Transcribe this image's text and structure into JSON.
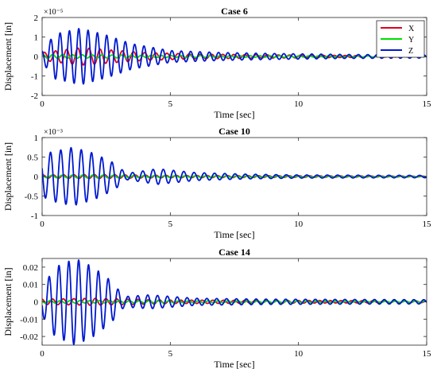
{
  "chart_data": [
    {
      "type": "line",
      "title": "Case 6",
      "xlabel": "Time [sec]",
      "ylabel": "Displacement [in]",
      "xlim": [
        0,
        15
      ],
      "ylim": [
        -2,
        2
      ],
      "xticks": [
        0,
        5,
        10,
        15
      ],
      "yticks": [
        -2,
        -1,
        0,
        1,
        2
      ],
      "ytick_labels": [
        "-2",
        "-1",
        "0",
        "1",
        "2"
      ],
      "exponent_label": "×10⁻⁵",
      "grid": false,
      "legend": "top-right",
      "series": [
        {
          "name": "X",
          "color": "#e0001a",
          "freq": 2.3,
          "envelope": {
            "t": [
              0,
              1.5,
              2.5,
              4,
              6,
              9,
              15
            ],
            "a": [
              0.2,
              0.45,
              0.35,
              0.2,
              0.12,
              0.08,
              0.02
            ]
          }
        },
        {
          "name": "Y",
          "color": "#00dd00",
          "freq": 2.6,
          "envelope": {
            "t": [
              0,
              2,
              5,
              15
            ],
            "a": [
              0.1,
              0.08,
              0.05,
              0.02
            ]
          }
        },
        {
          "name": "Z",
          "color": "#0019d0",
          "freq": 2.75,
          "envelope": {
            "t": [
              0,
              0.5,
              1.5,
              2.5,
              3.5,
              5,
              7,
              9,
              12,
              15
            ],
            "a": [
              0.3,
              1.15,
              1.45,
              1.1,
              0.65,
              0.3,
              0.2,
              0.15,
              0.1,
              0.08
            ]
          }
        }
      ]
    },
    {
      "type": "line",
      "title": "Case 10",
      "xlabel": "Time [sec]",
      "ylabel": "Displacement [in]",
      "xlim": [
        0,
        15
      ],
      "ylim": [
        -1,
        1
      ],
      "xticks": [
        0,
        5,
        10,
        15
      ],
      "yticks": [
        -1,
        -0.5,
        0,
        0.5,
        1
      ],
      "ytick_labels": [
        "-1",
        "-0.5",
        "0",
        "0.5",
        "1"
      ],
      "exponent_label": "×10⁻³",
      "grid": false,
      "series": [
        {
          "name": "X",
          "color": "#e0001a",
          "freq": 2.5,
          "envelope": {
            "t": [
              0,
              2,
              5,
              15
            ],
            "a": [
              0.04,
              0.05,
              0.03,
              0.01
            ]
          }
        },
        {
          "name": "Y",
          "color": "#00dd00",
          "freq": 2.5,
          "envelope": {
            "t": [
              0,
              2,
              5,
              15
            ],
            "a": [
              0.03,
              0.04,
              0.02,
              0.01
            ]
          }
        },
        {
          "name": "Z",
          "color": "#0019d0",
          "freq": 2.5,
          "envelope": {
            "t": [
              0,
              0.3,
              1.2,
              2.0,
              2.8,
              3.3,
              4.5,
              6,
              8,
              10,
              15
            ],
            "a": [
              0.5,
              0.62,
              0.75,
              0.6,
              0.35,
              0.08,
              0.2,
              0.1,
              0.06,
              0.04,
              0.03
            ]
          }
        }
      ]
    },
    {
      "type": "line",
      "title": "Case 14",
      "xlabel": "Time [sec]",
      "ylabel": "Displacement [in]",
      "xlim": [
        0,
        15
      ],
      "ylim": [
        -0.025,
        0.025
      ],
      "xticks": [
        0,
        5,
        10,
        15
      ],
      "yticks": [
        -0.02,
        -0.01,
        0,
        0.01,
        0.02
      ],
      "ytick_labels": [
        "-0.02",
        "-0.01",
        "0",
        "0.01",
        "0.02"
      ],
      "grid": false,
      "series": [
        {
          "name": "X",
          "color": "#e0001a",
          "freq": 2.4,
          "envelope": {
            "t": [
              0,
              2,
              3.5,
              5,
              15
            ],
            "a": [
              0.0015,
              0.002,
              0.0015,
              0.001,
              0.0005
            ]
          }
        },
        {
          "name": "Y",
          "color": "#00dd00",
          "freq": 2.6,
          "envelope": {
            "t": [
              0,
              3,
              15
            ],
            "a": [
              0.0008,
              0.0006,
              0.0003
            ]
          }
        },
        {
          "name": "Z",
          "color": "#0019d0",
          "freq": 2.6,
          "envelope": {
            "t": [
              0,
              0.5,
              1.3,
              2.0,
              2.7,
              3.2,
              4.2,
              6,
              9,
              15
            ],
            "a": [
              0.008,
              0.02,
              0.025,
              0.02,
              0.012,
              0.003,
              0.004,
              0.002,
              0.0015,
              0.0012
            ]
          }
        }
      ]
    }
  ]
}
